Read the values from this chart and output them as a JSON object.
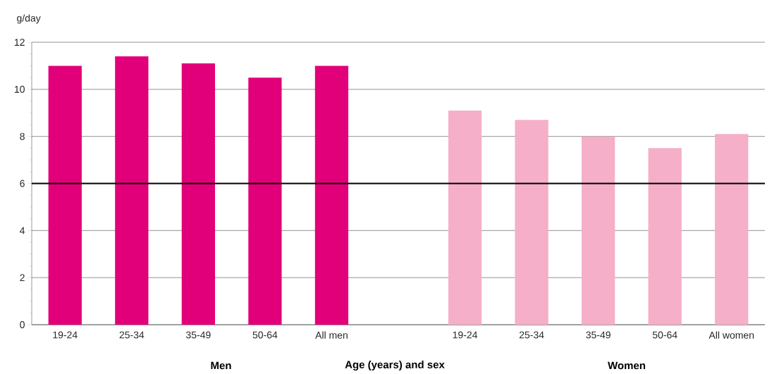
{
  "chart_data": {
    "type": "bar",
    "ylabel": "g/day",
    "xlabel": "Age  (years) and sex",
    "categories": [
      "19-24",
      "25-34",
      "35-49",
      "50-64",
      "All men",
      null,
      "19-24",
      "25-34",
      "35-49",
      "50-64",
      "All women"
    ],
    "values": [
      11.0,
      11.4,
      11.1,
      10.5,
      11.0,
      null,
      9.1,
      8.7,
      8.0,
      7.5,
      8.1
    ],
    "colors": [
      "#e2007a",
      "#e2007a",
      "#e2007a",
      "#e2007a",
      "#e2007a",
      null,
      "#f5afc8",
      "#f5afc8",
      "#f5afc8",
      "#f5afc8",
      "#f5afc8"
    ],
    "ylim": [
      0,
      12
    ],
    "yticks": [
      0,
      2,
      4,
      6,
      8,
      10,
      12
    ],
    "grid": "y",
    "ref_lines": [
      {
        "axis": "y",
        "value": 6,
        "color": "#000000"
      }
    ],
    "annotations": [
      "Men",
      "Women"
    ]
  }
}
